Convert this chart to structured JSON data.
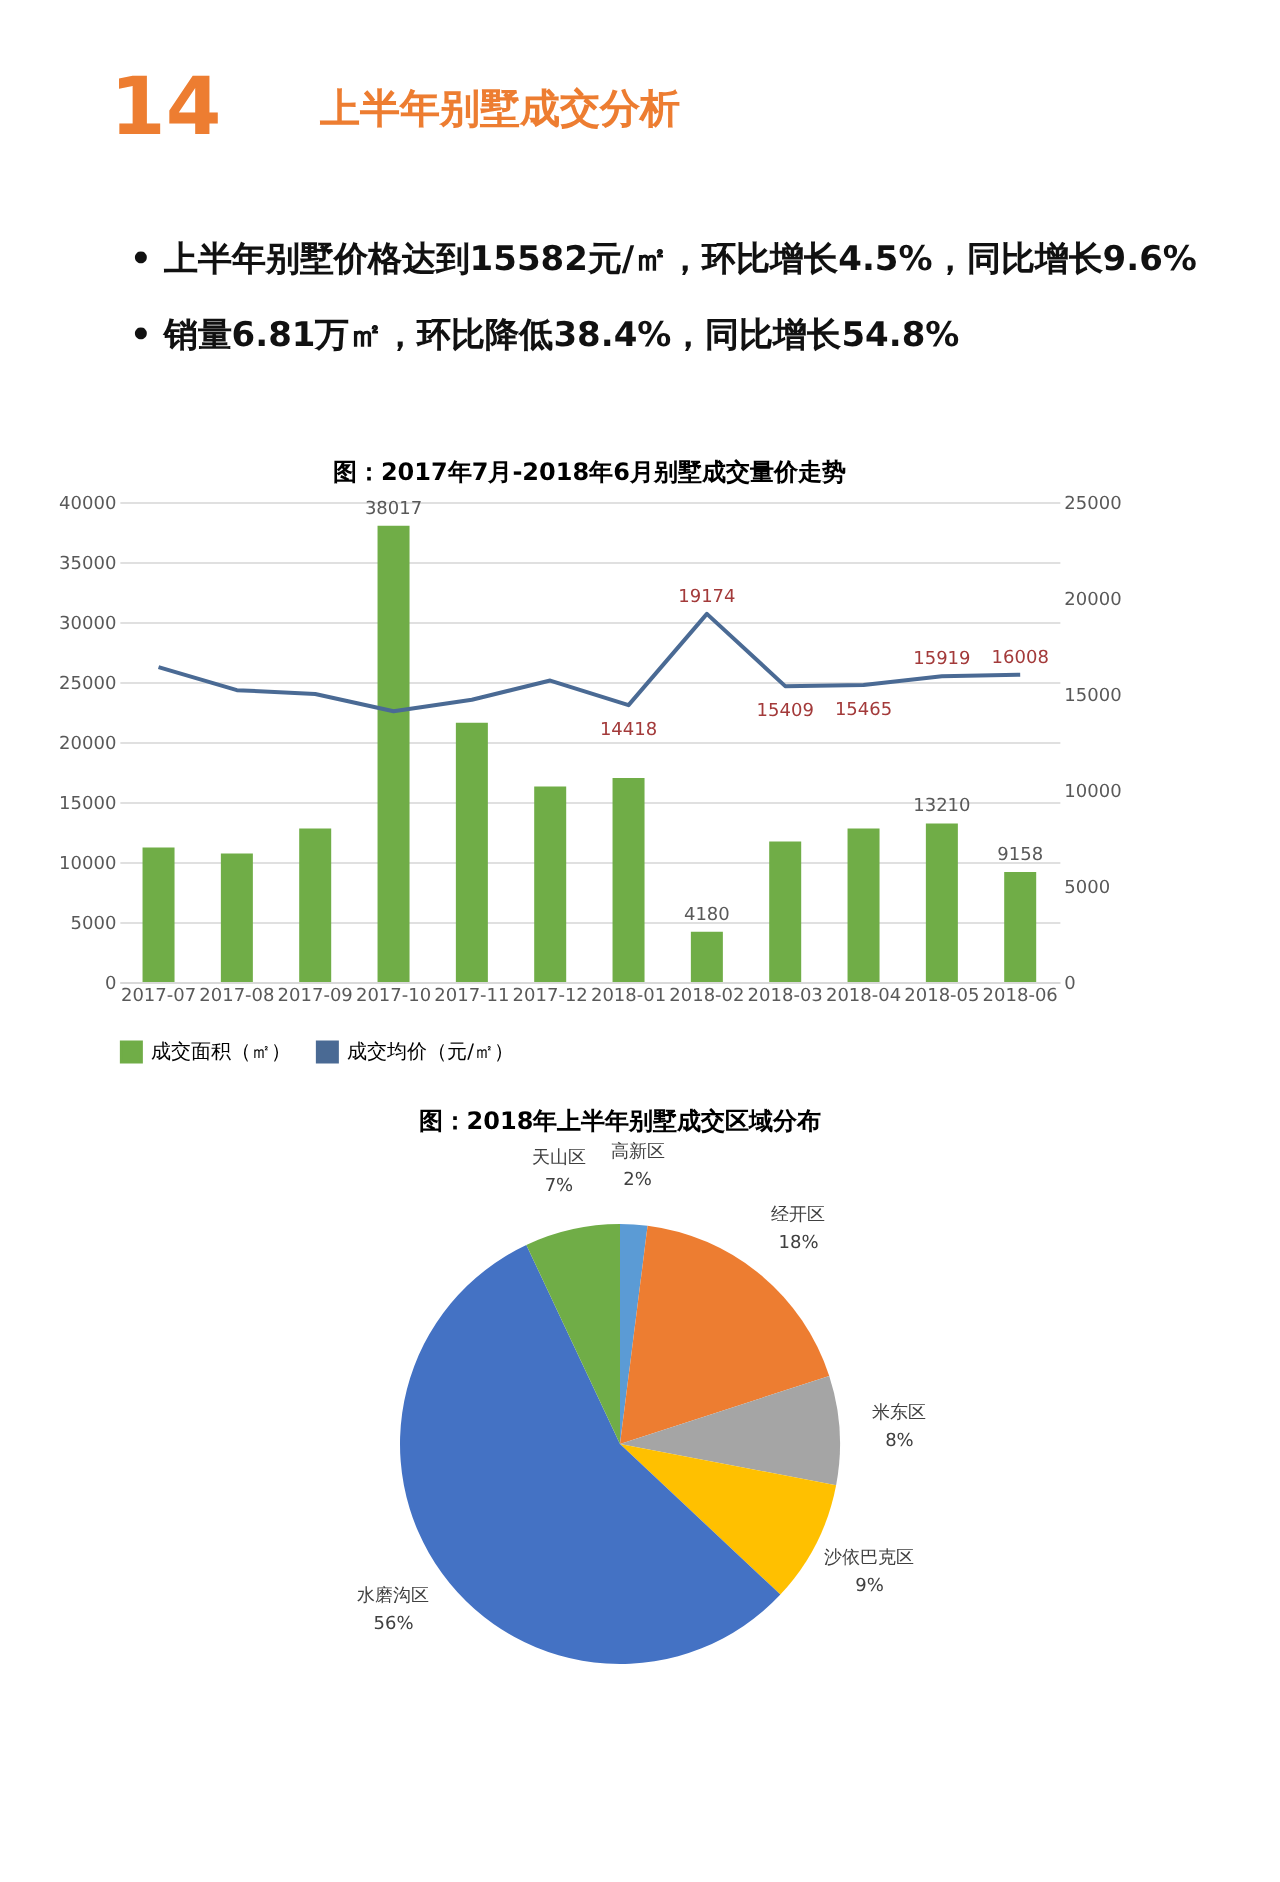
{
  "chart_data": [
    {
      "type": "other",
      "title": "上半年别墅成交分析",
      "annotations": [
        "14",
        "• 上半年别墅价格达到15582元/㎡，环比增长4.5%，同比增长9.6%",
        "• 销量6.81万㎡，环比降低38.4%，同比增长54.8%"
      ]
    },
    {
      "type": "bar",
      "title": "图：2017年7月-2018年6月别墅成交量价走势",
      "categories": [
        "2017-07",
        "2017-08",
        "2017-09",
        "2017-10",
        "2017-11",
        "2017-12",
        "2018-01",
        "2018-02",
        "2018-03",
        "2018-04",
        "2018-05",
        "2018-06"
      ],
      "series": [
        {
          "name": "成交面积（㎡）",
          "type": "bar",
          "color": "#70ad47",
          "values": [
            11200,
            10700,
            12800,
            38017,
            21600,
            16300,
            17000,
            4180,
            11700,
            12800,
            13210,
            9158
          ],
          "value_labels": [
            null,
            null,
            null,
            "38017",
            null,
            null,
            null,
            "4180",
            null,
            null,
            "13210",
            "9158"
          ]
        },
        {
          "name": "成交均价（元/㎡）",
          "type": "line",
          "axis": "y2",
          "color": "#4a6a94",
          "values": [
            16400,
            15200,
            15000,
            14100,
            14700,
            15700,
            14418,
            19174,
            15409,
            15465,
            15919,
            16008
          ],
          "value_labels": [
            null,
            null,
            null,
            null,
            null,
            null,
            "14418",
            "19174",
            "15409",
            "15465",
            "15919",
            "16008"
          ]
        }
      ],
      "ylim": [
        0,
        40000
      ],
      "yticks": [
        0,
        5000,
        10000,
        15000,
        20000,
        25000,
        30000,
        35000,
        40000
      ],
      "y2lim": [
        0,
        25000
      ],
      "y2ticks": [
        0,
        5000,
        10000,
        15000,
        20000,
        25000
      ],
      "grid": "y",
      "legend": "bottom",
      "marker": "none",
      "line_style": "solid"
    },
    {
      "type": "pie",
      "title": "图：2018年上半年别墅成交区域分布",
      "categories": [
        "高新区",
        "经开区",
        "米东区",
        "沙依巴克区",
        "水磨沟区",
        "天山区"
      ],
      "values": [
        2,
        18,
        8,
        9,
        56,
        7
      ],
      "value_labels": [
        "2%",
        "18%",
        "8%",
        "9%",
        "56%",
        "7%"
      ],
      "colors": [
        "#5b9bd5",
        "#ed7d31",
        "#a5a5a5",
        "#ffc000",
        "#4472c4",
        "#70ad47"
      ]
    }
  ]
}
